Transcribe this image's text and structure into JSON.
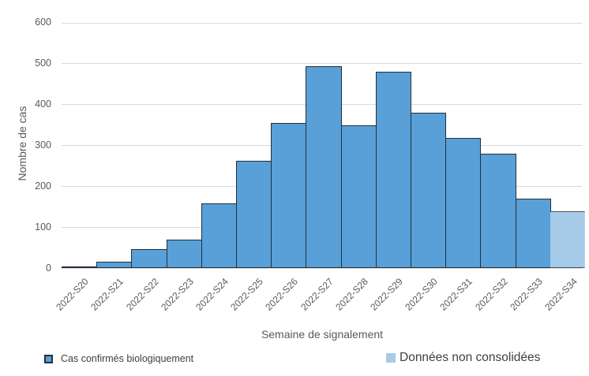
{
  "chart_data": {
    "type": "bar",
    "title": "",
    "xlabel": "Semaine de signalement",
    "ylabel": "Nombre de cas",
    "categories": [
      "2022-S20",
      "2022-S21",
      "2022-S22",
      "2022-S23",
      "2022-S24",
      "2022-S25",
      "2022-S26",
      "2022-S27",
      "2022-S28",
      "2022-S29",
      "2022-S30",
      "2022-S31",
      "2022-S32",
      "2022-S33",
      "2022-S34"
    ],
    "series": [
      {
        "name": "Cas confirmés biologiquement",
        "color": "#58A0D7",
        "border_color": "#22303C",
        "values": [
          5,
          16,
          48,
          70,
          158,
          263,
          356,
          494,
          350,
          481,
          380,
          318,
          281,
          170
        ]
      },
      {
        "name": "Données non consolidées",
        "color": "#A6CBE9",
        "border_color": "#46525E",
        "values": [
          140
        ]
      }
    ],
    "y_axis": {
      "min": 0,
      "max": 600,
      "step": 100,
      "ticks": [
        0,
        100,
        200,
        300,
        400,
        500,
        600
      ]
    },
    "grid": "horizontal",
    "grid_color": "#D9D9D9",
    "axis_text_color": "#595959",
    "legend_position": "bottom"
  }
}
